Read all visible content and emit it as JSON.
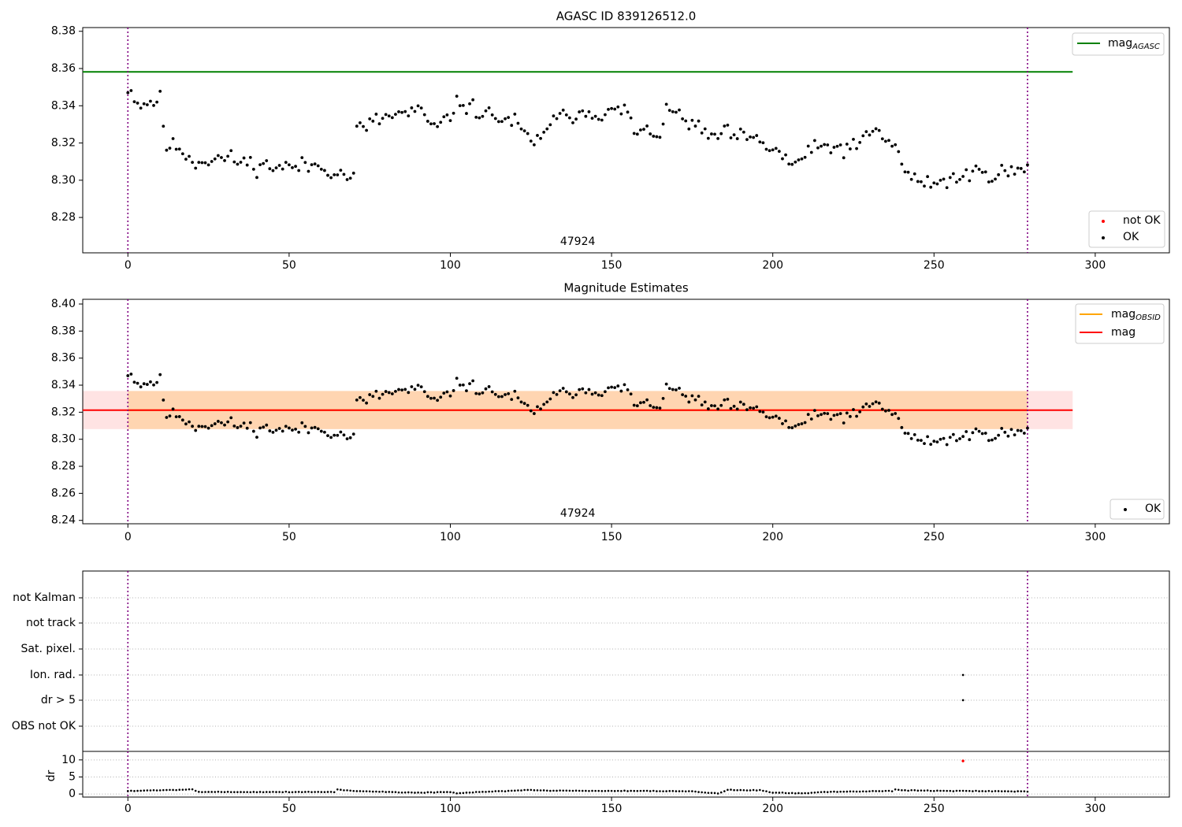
{
  "chart_data": [
    {
      "type": "scatter",
      "title": "AGASC ID 839126512.0",
      "annotation": "47924",
      "xlim": [
        -14,
        323
      ],
      "ylim": [
        8.261,
        8.382
      ],
      "xticks": [
        0,
        50,
        100,
        150,
        200,
        250,
        300
      ],
      "yticks": [
        8.28,
        8.3,
        8.32,
        8.34,
        8.36,
        8.38
      ],
      "vlines": [
        0,
        279
      ],
      "hline": {
        "name": "mag_AGASC",
        "y": 8.3582,
        "x_range": [
          -14,
          293
        ],
        "color": "#008000"
      },
      "legend_top": {
        "location": "top-right",
        "entries": [
          {
            "label": "mag",
            "sub": "AGASC",
            "color": "#008000"
          }
        ]
      },
      "legend_bottom": {
        "location": "bottom-right",
        "entries": [
          {
            "label": "not OK",
            "color": "#ff0000"
          },
          {
            "label": "OK",
            "color": "#000000"
          }
        ]
      },
      "series": [
        {
          "name": "OK",
          "color": "#000000",
          "anchors": [
            [
              0,
              8.35
            ],
            [
              2,
              8.345
            ],
            [
              4,
              8.34
            ],
            [
              6,
              8.342
            ],
            [
              10,
              8.343
            ],
            [
              12,
              8.318
            ],
            [
              16,
              8.318
            ],
            [
              20,
              8.31
            ],
            [
              30,
              8.312
            ],
            [
              40,
              8.308
            ],
            [
              50,
              8.307
            ],
            [
              60,
              8.308
            ],
            [
              66,
              8.303
            ],
            [
              70,
              8.302
            ],
            [
              71,
              8.327
            ],
            [
              75,
              8.33
            ],
            [
              80,
              8.334
            ],
            [
              90,
              8.337
            ],
            [
              96,
              8.327
            ],
            [
              103,
              8.342
            ],
            [
              110,
              8.336
            ],
            [
              120,
              8.331
            ],
            [
              126,
              8.318
            ],
            [
              130,
              8.33
            ],
            [
              140,
              8.337
            ],
            [
              150,
              8.336
            ],
            [
              155,
              8.338
            ],
            [
              157,
              8.325
            ],
            [
              165,
              8.326
            ],
            [
              168,
              8.338
            ],
            [
              175,
              8.33
            ],
            [
              180,
              8.323
            ],
            [
              185,
              8.325
            ],
            [
              195,
              8.321
            ],
            [
              202,
              8.315
            ],
            [
              205,
              8.308
            ],
            [
              215,
              8.318
            ],
            [
              225,
              8.317
            ],
            [
              232,
              8.327
            ],
            [
              238,
              8.318
            ],
            [
              240,
              8.308
            ],
            [
              245,
              8.298
            ],
            [
              255,
              8.3
            ],
            [
              262,
              8.304
            ],
            [
              270,
              8.304
            ],
            [
              279,
              8.305
            ]
          ],
          "noise": 0.0042,
          "seed": 11
        }
      ]
    },
    {
      "type": "scatter",
      "title": "Magnitude Estimates",
      "annotation": "47924",
      "xlim": [
        -14,
        323
      ],
      "ylim": [
        8.2375,
        8.4035
      ],
      "xticks": [
        0,
        50,
        100,
        150,
        200,
        250,
        300
      ],
      "yticks": [
        8.24,
        8.26,
        8.28,
        8.3,
        8.32,
        8.34,
        8.36,
        8.38,
        8.4
      ],
      "vlines": [
        0,
        279
      ],
      "bands": [
        {
          "name": "mag_obsid_band",
          "y0": 8.3075,
          "y1": 8.3357,
          "x_range": [
            0,
            279
          ],
          "color": "#ffa500",
          "opacity": 0.22
        },
        {
          "name": "mag_band",
          "y0": 8.3075,
          "y1": 8.3357,
          "x_range": [
            -14,
            293
          ],
          "color": "#ff0000",
          "opacity": 0.11
        }
      ],
      "lines": [
        {
          "name": "mag_OBSID",
          "y": 8.3215,
          "x_range": [
            0,
            279
          ],
          "color": "#ffa500"
        },
        {
          "name": "mag",
          "y": 8.3215,
          "x_range": [
            -14,
            293
          ],
          "color": "#ff0000"
        }
      ],
      "legend_top": {
        "location": "top-right",
        "entries": [
          {
            "label": "mag",
            "sub": "OBSID",
            "color": "#ffa500"
          },
          {
            "label": "mag",
            "sub": "",
            "color": "#ff0000"
          }
        ]
      },
      "legend_bottom": {
        "location": "bottom-right",
        "entries": [
          {
            "label": "OK",
            "color": "#000000"
          }
        ]
      },
      "series": [
        {
          "name": "OK",
          "color": "#000000",
          "anchors": [
            [
              0,
              8.35
            ],
            [
              2,
              8.345
            ],
            [
              4,
              8.34
            ],
            [
              6,
              8.342
            ],
            [
              10,
              8.343
            ],
            [
              12,
              8.318
            ],
            [
              16,
              8.318
            ],
            [
              20,
              8.31
            ],
            [
              30,
              8.312
            ],
            [
              40,
              8.308
            ],
            [
              50,
              8.307
            ],
            [
              60,
              8.308
            ],
            [
              66,
              8.303
            ],
            [
              70,
              8.302
            ],
            [
              71,
              8.327
            ],
            [
              75,
              8.33
            ],
            [
              80,
              8.334
            ],
            [
              90,
              8.337
            ],
            [
              96,
              8.327
            ],
            [
              103,
              8.342
            ],
            [
              110,
              8.336
            ],
            [
              120,
              8.331
            ],
            [
              126,
              8.318
            ],
            [
              130,
              8.33
            ],
            [
              140,
              8.337
            ],
            [
              150,
              8.336
            ],
            [
              155,
              8.338
            ],
            [
              157,
              8.325
            ],
            [
              165,
              8.326
            ],
            [
              168,
              8.338
            ],
            [
              175,
              8.33
            ],
            [
              180,
              8.323
            ],
            [
              185,
              8.325
            ],
            [
              195,
              8.321
            ],
            [
              202,
              8.315
            ],
            [
              205,
              8.308
            ],
            [
              215,
              8.318
            ],
            [
              225,
              8.317
            ],
            [
              232,
              8.327
            ],
            [
              238,
              8.318
            ],
            [
              240,
              8.308
            ],
            [
              245,
              8.298
            ],
            [
              255,
              8.3
            ],
            [
              262,
              8.304
            ],
            [
              270,
              8.304
            ],
            [
              279,
              8.305
            ]
          ],
          "noise": 0.0042,
          "seed": 11
        }
      ]
    },
    {
      "type": "scatter",
      "title": "",
      "xlim": [
        -14,
        323
      ],
      "categories": [
        "not Kalman",
        "not track",
        "Sat. pixel.",
        "Ion. rad.",
        "dr > 5",
        "OBS not OK"
      ],
      "vlines": [
        0,
        279
      ],
      "flag_points": [
        {
          "category": "Ion. rad.",
          "x": 259
        },
        {
          "category": "dr > 5",
          "x": 259
        }
      ]
    },
    {
      "type": "scatter",
      "title": "",
      "xlim": [
        -14,
        323
      ],
      "ylim": [
        -0.9,
        12.5
      ],
      "ylabel": "dr",
      "xticks": [
        0,
        50,
        100,
        150,
        200,
        250,
        300
      ],
      "xtick_labels": [
        "0",
        "50",
        "100",
        "150",
        "200",
        "250",
        "300"
      ],
      "yticks": [
        0,
        5,
        10
      ],
      "vlines": [
        0,
        279
      ],
      "series": [
        {
          "name": "dr",
          "color": "#000000",
          "anchors": [
            [
              0,
              0.9
            ],
            [
              10,
              1.1
            ],
            [
              20,
              1.4
            ],
            [
              22,
              0.6
            ],
            [
              64,
              0.6
            ],
            [
              65,
              1.3
            ],
            [
              72,
              0.8
            ],
            [
              90,
              0.4
            ],
            [
              100,
              0.6
            ],
            [
              102,
              0.2
            ],
            [
              110,
              0.6
            ],
            [
              125,
              1.2
            ],
            [
              130,
              1.0
            ],
            [
              150,
              0.9
            ],
            [
              175,
              0.8
            ],
            [
              180,
              0.3
            ],
            [
              183,
              0.2
            ],
            [
              186,
              1.2
            ],
            [
              196,
              1.1
            ],
            [
              200,
              0.4
            ],
            [
              210,
              0.2
            ],
            [
              215,
              0.6
            ],
            [
              237,
              0.9
            ],
            [
              238,
              1.4
            ],
            [
              240,
              1.1
            ],
            [
              256,
              0.9
            ],
            [
              260,
              0.9
            ],
            [
              279,
              0.7
            ]
          ],
          "noise": 0.08,
          "seed": 5
        },
        {
          "name": "not OK",
          "color": "#ff0000",
          "points": [
            [
              259,
              9.7
            ]
          ]
        }
      ]
    }
  ]
}
